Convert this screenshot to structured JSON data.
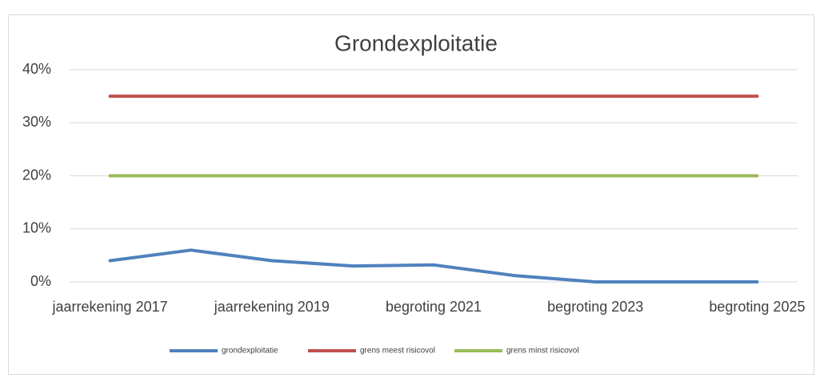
{
  "chart_data": {
    "type": "line",
    "title": "Grondexploitatie",
    "categories": [
      "jaarrekening 2017",
      null,
      "jaarrekening 2019",
      null,
      "begroting 2021",
      null,
      "begroting 2023",
      null,
      "begroting 2025"
    ],
    "series": [
      {
        "name": "grondexploitatie",
        "color": "#4f81bd",
        "values": [
          4,
          6,
          4,
          3,
          3.2,
          1.2,
          0,
          0,
          0
        ]
      },
      {
        "name": "grens meest risicovol",
        "color": "#c0504d",
        "values": [
          35,
          35,
          35,
          35,
          35,
          35,
          35,
          35,
          35
        ]
      },
      {
        "name": "grens minst risicovol",
        "color": "#9bbb59",
        "values": [
          20,
          20,
          20,
          20,
          20,
          20,
          20,
          20,
          20
        ]
      }
    ],
    "ylim": [
      0,
      40
    ],
    "yticks": [
      {
        "value": 0,
        "label": "0%"
      },
      {
        "value": 10,
        "label": "10%"
      },
      {
        "value": 20,
        "label": "20%"
      },
      {
        "value": 30,
        "label": "30%"
      },
      {
        "value": 40,
        "label": "40%"
      }
    ],
    "grid": true,
    "legend": "bottom"
  }
}
